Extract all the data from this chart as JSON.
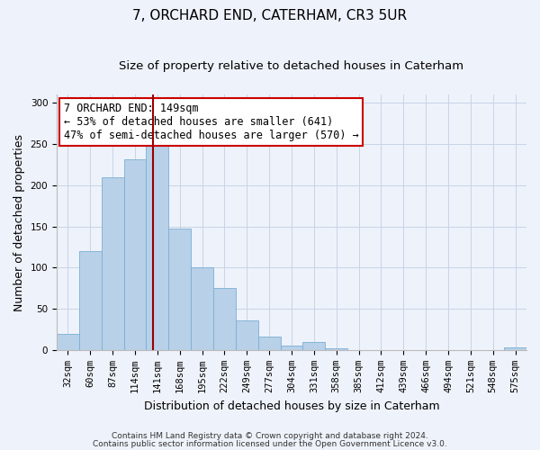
{
  "title": "7, ORCHARD END, CATERHAM, CR3 5UR",
  "subtitle": "Size of property relative to detached houses in Caterham",
  "xlabel": "Distribution of detached houses by size in Caterham",
  "ylabel": "Number of detached properties",
  "bar_labels": [
    "32sqm",
    "60sqm",
    "87sqm",
    "114sqm",
    "141sqm",
    "168sqm",
    "195sqm",
    "222sqm",
    "249sqm",
    "277sqm",
    "304sqm",
    "331sqm",
    "358sqm",
    "385sqm",
    "412sqm",
    "439sqm",
    "466sqm",
    "494sqm",
    "521sqm",
    "548sqm",
    "575sqm"
  ],
  "bar_values": [
    20,
    120,
    210,
    232,
    250,
    148,
    101,
    75,
    36,
    16,
    5,
    10,
    2,
    0,
    0,
    0,
    0,
    0,
    0,
    0,
    3
  ],
  "bar_color": "#b8d0e8",
  "bar_edge_color": "#7aafd4",
  "background_color": "#eef2fa",
  "grid_color": "#c8d4e8",
  "vline_color": "#990000",
  "annotation_text": "7 ORCHARD END: 149sqm\n← 53% of detached houses are smaller (641)\n47% of semi-detached houses are larger (570) →",
  "annotation_box_facecolor": "#ffffff",
  "annotation_box_edgecolor": "#cc0000",
  "ylim": [
    0,
    310
  ],
  "yticks": [
    0,
    50,
    100,
    150,
    200,
    250,
    300
  ],
  "footer_line1": "Contains HM Land Registry data © Crown copyright and database right 2024.",
  "footer_line2": "Contains public sector information licensed under the Open Government Licence v3.0.",
  "title_fontsize": 11,
  "subtitle_fontsize": 9.5,
  "axis_label_fontsize": 9,
  "tick_fontsize": 7.5,
  "annotation_fontsize": 8.5,
  "footer_fontsize": 6.5
}
